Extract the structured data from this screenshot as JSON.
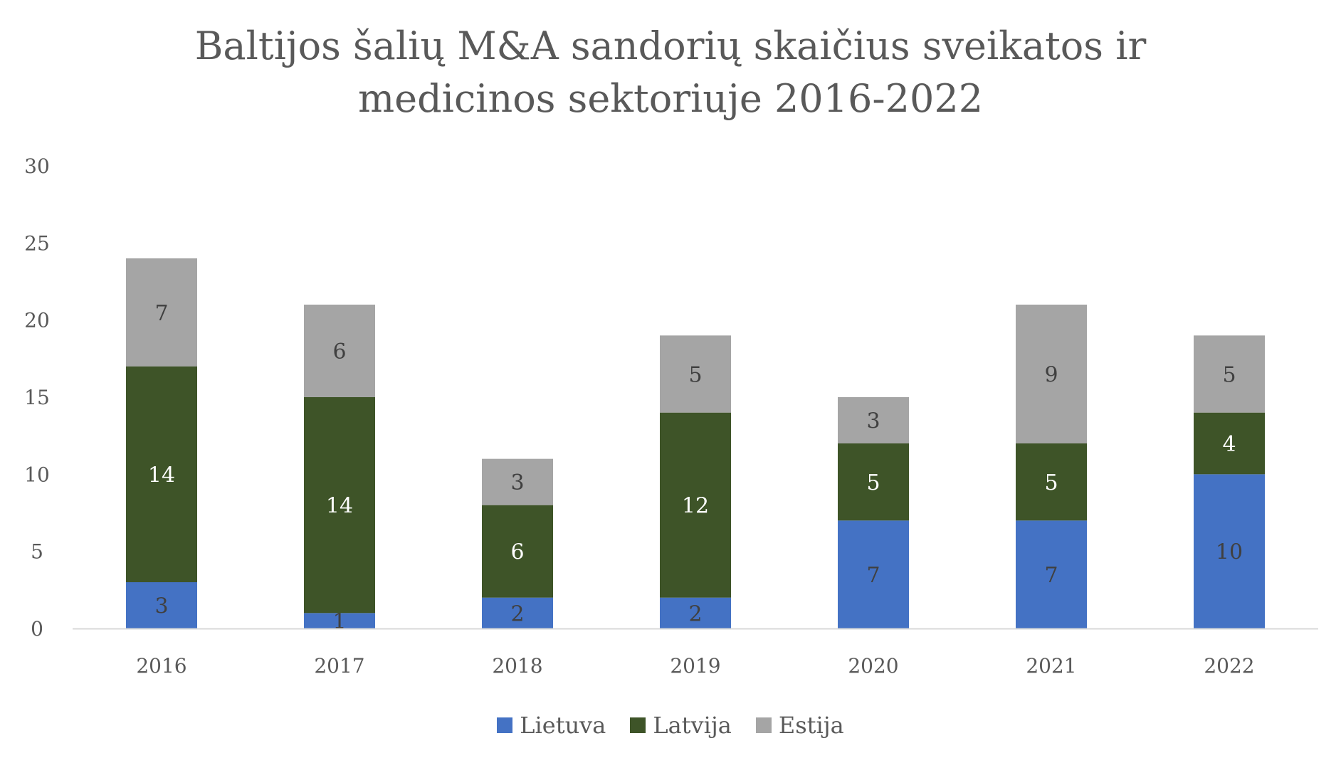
{
  "chart_data": {
    "type": "bar",
    "stacked": true,
    "title_lines": [
      "Baltijos šalių M&A sandorių skaičius sveikatos ir",
      "medicinos sektoriuje 2016-2022"
    ],
    "categories": [
      "2016",
      "2017",
      "2018",
      "2019",
      "2020",
      "2021",
      "2022"
    ],
    "series": [
      {
        "name": "Lietuva",
        "color": "#4472C4",
        "label_color": "#404040",
        "values": [
          3,
          1,
          2,
          2,
          7,
          7,
          10
        ]
      },
      {
        "name": "Latvija",
        "color": "#3E5428",
        "label_color": "#FFFFFF",
        "values": [
          14,
          14,
          6,
          12,
          5,
          5,
          4
        ]
      },
      {
        "name": "Estija",
        "color": "#A5A5A5",
        "label_color": "#404040",
        "values": [
          7,
          6,
          3,
          5,
          3,
          9,
          5
        ]
      }
    ],
    "ylim": [
      0,
      30
    ],
    "yticks": [
      "0",
      "5",
      "10",
      "15",
      "20",
      "25",
      "30"
    ],
    "grid": false,
    "data_labels": true,
    "legend_position": "bottom"
  }
}
